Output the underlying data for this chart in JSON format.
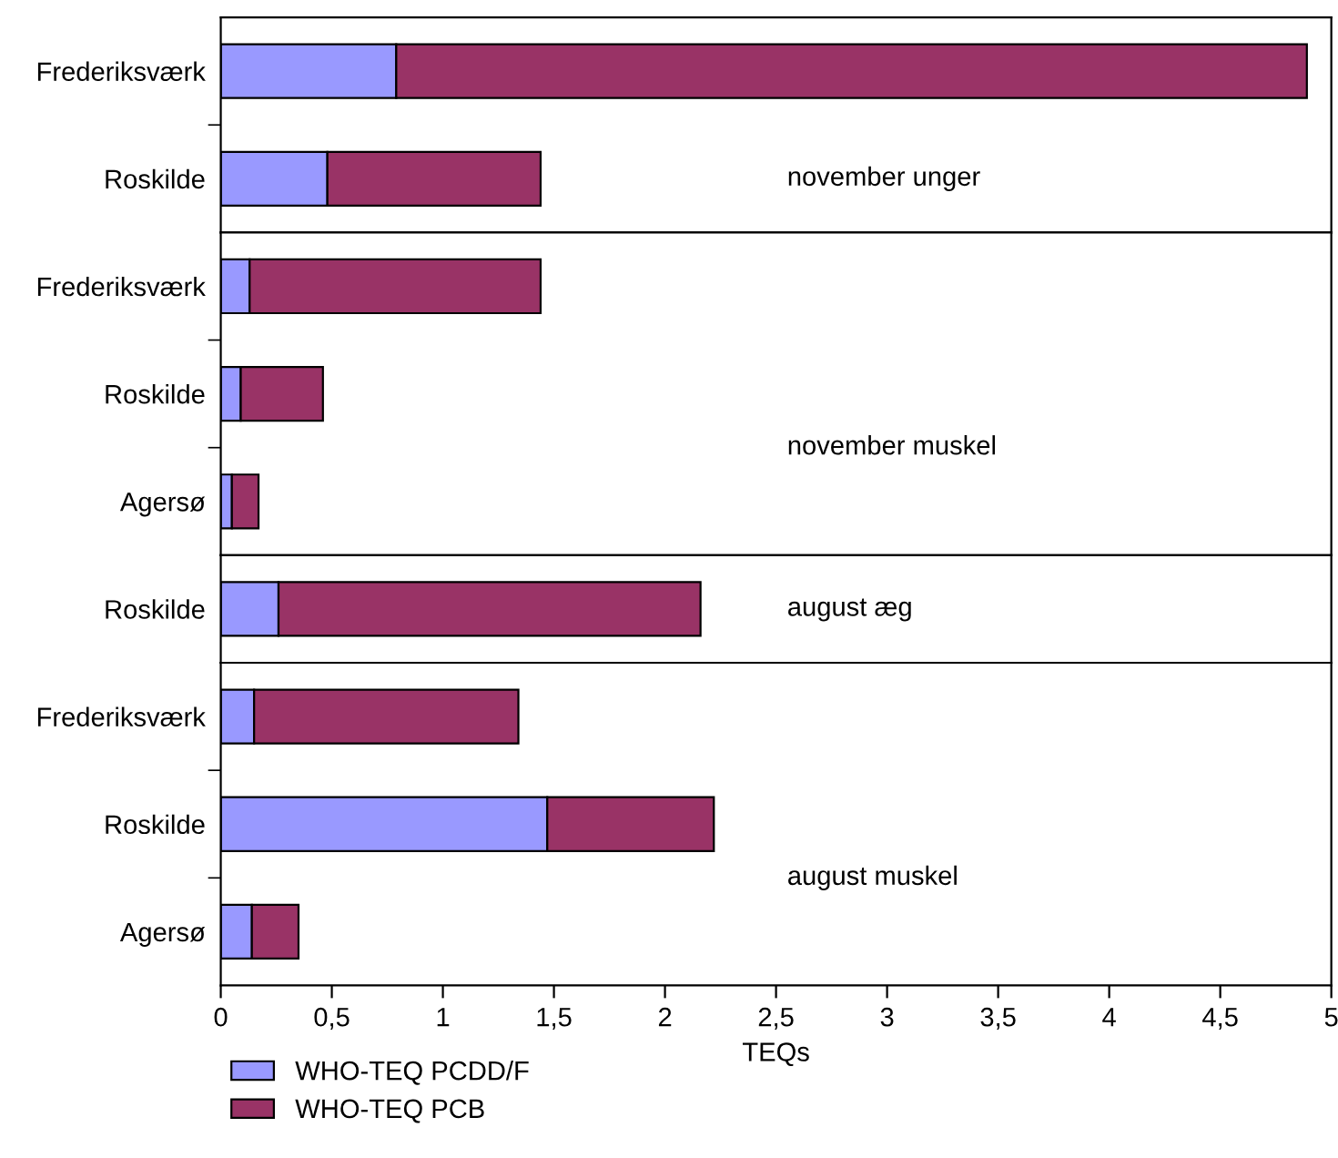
{
  "chart_data": [
    {
      "type": "bar",
      "orientation": "horizontal",
      "stacked": true,
      "categories": [
        "Frederiksværk",
        "Roskilde"
      ],
      "xlim": [
        0,
        5
      ],
      "tick_labels": "y",
      "annotations": [
        "november unger"
      ],
      "series": [
        {
          "color": "#9999ff",
          "values": [
            0.79,
            0.48
          ]
        },
        {
          "color": "#993366",
          "values": [
            4.1,
            0.96
          ]
        }
      ]
    },
    {
      "type": "bar",
      "orientation": "horizontal",
      "stacked": true,
      "categories": [
        "Frederiksværk",
        "Roskilde",
        "Agersø"
      ],
      "xlim": [
        0,
        5
      ],
      "tick_labels": "y",
      "annotations": [
        "november muskel"
      ],
      "series": [
        {
          "color": "#9999ff",
          "values": [
            0.13,
            0.09,
            0.05
          ]
        },
        {
          "color": "#993366",
          "values": [
            1.31,
            0.37,
            0.12
          ]
        }
      ]
    },
    {
      "type": "bar",
      "orientation": "horizontal",
      "stacked": true,
      "categories": [
        "Roskilde"
      ],
      "xlim": [
        0,
        5
      ],
      "tick_labels": "y",
      "annotations": [
        "august æg"
      ],
      "series": [
        {
          "color": "#9999ff",
          "values": [
            0.26
          ]
        },
        {
          "color": "#993366",
          "values": [
            1.9
          ]
        }
      ]
    },
    {
      "type": "bar",
      "orientation": "horizontal",
      "stacked": true,
      "categories": [
        "Frederiksværk",
        "Roskilde",
        "Agersø"
      ],
      "xlim": [
        0,
        5
      ],
      "xticks": [
        0,
        {
          "value": 0.5,
          "label": "0,5"
        },
        1,
        {
          "value": 1.5,
          "label": "1,5"
        },
        2,
        {
          "value": 2.5,
          "label": "2,5"
        },
        3,
        {
          "value": 3.5,
          "label": "3,5"
        },
        4,
        {
          "value": 4.5,
          "label": "4,5"
        },
        5
      ],
      "xlabel": "TEQs",
      "legend": "bottom",
      "annotations": [
        "august muskel"
      ],
      "series": [
        {
          "name": "WHO-TEQ PCDD/F",
          "color": "#9999ff",
          "values": [
            0.15,
            1.47,
            0.14
          ]
        },
        {
          "name": "WHO-TEQ PCB",
          "color": "#993366",
          "values": [
            1.19,
            0.75,
            0.21
          ]
        }
      ]
    }
  ]
}
